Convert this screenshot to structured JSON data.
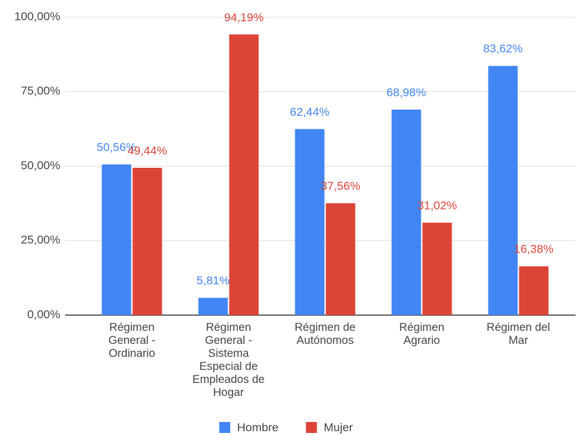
{
  "chart_data": {
    "type": "bar",
    "categories": [
      "Régimen General - Ordinario",
      "Régimen General - Sistema Especial de Empleados de Hogar",
      "Régimen de Autónomos",
      "Régimen Agrario",
      "Régimen del Mar"
    ],
    "series": [
      {
        "name": "Hombre",
        "color": "#4285f4",
        "values": [
          50.56,
          5.81,
          62.44,
          68.98,
          83.62
        ],
        "value_labels": [
          "50,56%",
          "5,81%",
          "62,44%",
          "68,98%",
          "83,62%"
        ]
      },
      {
        "name": "Mujer",
        "color": "#db4437",
        "values": [
          49.44,
          94.19,
          37.56,
          31.02,
          16.38
        ],
        "value_labels": [
          "49,44%",
          "94,19%",
          "37,56%",
          "31,02%",
          "16,38%"
        ]
      }
    ],
    "ylim": [
      0,
      100
    ],
    "yticks": [
      {
        "value": 0,
        "label": "0,00%"
      },
      {
        "value": 25,
        "label": "25,00%"
      },
      {
        "value": 50,
        "label": "50,00%"
      },
      {
        "value": 75,
        "label": "75,00%"
      },
      {
        "value": 100,
        "label": "100,00%"
      }
    ],
    "grid": true,
    "legend": "bottom"
  }
}
